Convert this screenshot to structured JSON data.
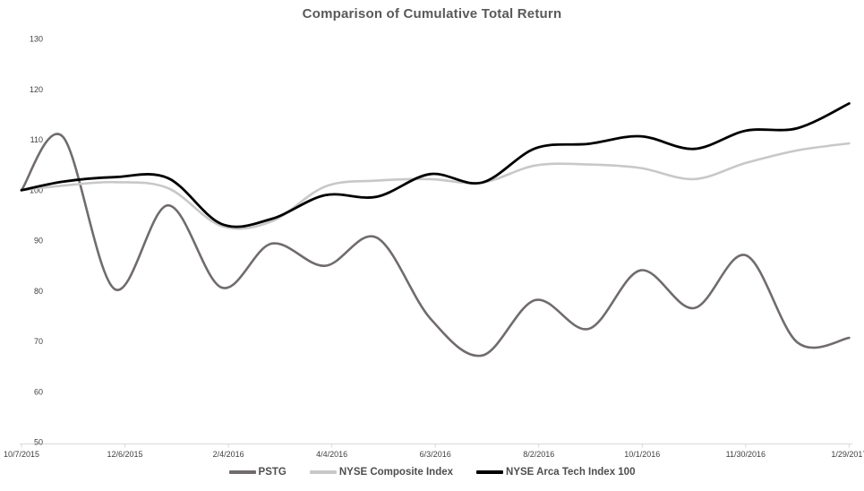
{
  "title": "Comparison of Cumulative Total Return",
  "chart_data": {
    "type": "line",
    "title": "Comparison of Cumulative Total Return",
    "x_dates": [
      "10/7/2015",
      "10/31/2015",
      "11/30/2015",
      "12/31/2015",
      "1/31/2016",
      "2/29/2016",
      "3/31/2016",
      "4/30/2016",
      "5/31/2016",
      "6/30/2016",
      "7/31/2016",
      "8/31/2016",
      "9/30/2016",
      "10/31/2016",
      "11/30/2016",
      "12/30/2016",
      "1/29/2017"
    ],
    "x_days": [
      0,
      24,
      54,
      85,
      116,
      145,
      176,
      206,
      237,
      267,
      298,
      329,
      359,
      390,
      420,
      450,
      480
    ],
    "series": [
      {
        "name": "PSTG",
        "color": "#716c6c",
        "values": [
          100,
          110.6,
          80.4,
          97,
          80.7,
          89.4,
          85,
          90.6,
          74.6,
          67.2,
          78.2,
          72.5,
          84.1,
          76.6,
          87.1,
          69.8,
          70.7
        ]
      },
      {
        "name": "NYSE Composite Index",
        "color": "#c8c8c8",
        "values": [
          100,
          100.9,
          101.6,
          100.4,
          92.9,
          93.8,
          100.7,
          101.9,
          102.2,
          101.5,
          104.9,
          105.1,
          104.4,
          102.2,
          105.4,
          107.9,
          109.3
        ]
      },
      {
        "name": "NYSE Arca Tech Index 100",
        "color": "#000000",
        "values": [
          100,
          101.7,
          102.6,
          102.4,
          93.3,
          94.3,
          99,
          98.7,
          103.2,
          101.5,
          108.3,
          109.2,
          110.7,
          108.2,
          111.8,
          112.3,
          117.2
        ]
      }
    ],
    "x_axis": {
      "tick_labels": [
        "10/7/2015",
        "12/6/2015",
        "2/4/2016",
        "4/4/2016",
        "6/3/2016",
        "8/2/2016",
        "10/1/2016",
        "11/30/2016",
        "1/29/2017"
      ],
      "tick_days": [
        0,
        60,
        120,
        180,
        240,
        300,
        360,
        420,
        480
      ]
    },
    "y_axis": {
      "min": 50,
      "max": 130,
      "step": 10,
      "tick_labels": [
        "50",
        "60",
        "70",
        "80",
        "90",
        "100",
        "110",
        "120",
        "130"
      ]
    },
    "ylim": [
      50,
      130
    ],
    "grid": false,
    "legend_position": "bottom",
    "smoothing": "spline"
  },
  "colors": {
    "title_text": "#595959",
    "legend_text": "#4e4e4e",
    "axis_text": "#3f3f3f",
    "axis_line": "#d9d9d9",
    "background": "#ffffff"
  }
}
